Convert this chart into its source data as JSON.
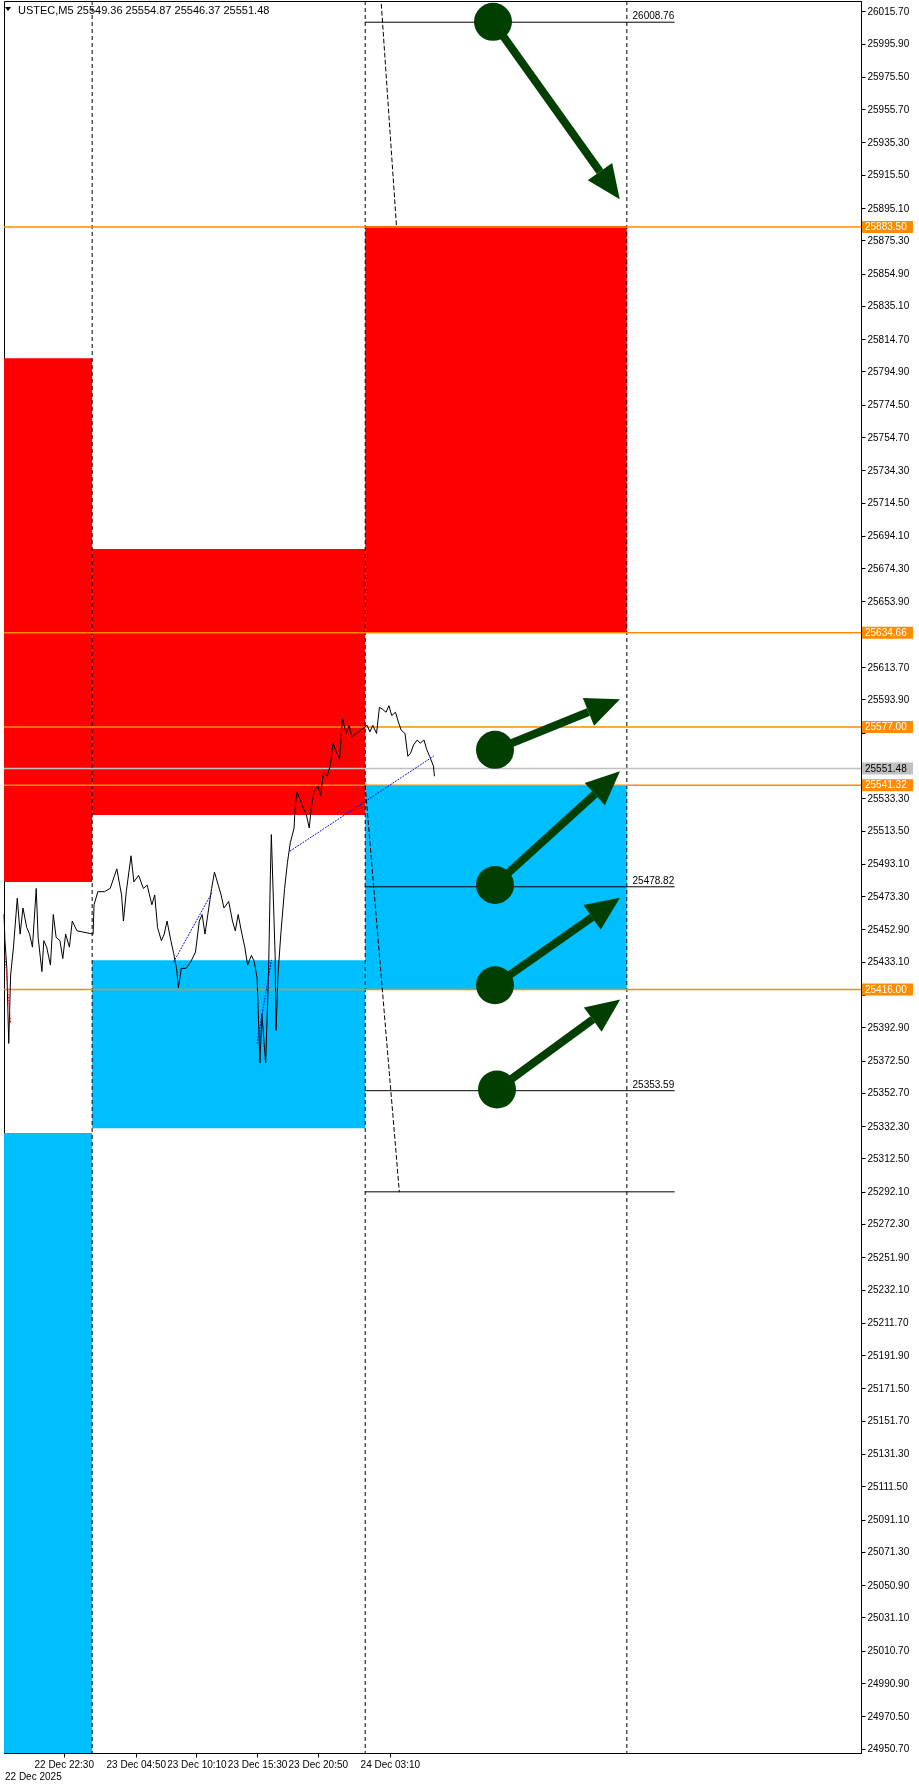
{
  "chart_data": {
    "type": "line",
    "title": "USTEC,M5 25549.36 25554.87 25546.37 25551.48",
    "annotations": [
      "22 Dec 2025"
    ],
    "xlim": [
      "2025-12-22T17:15",
      "2025-12-25T20:35"
    ],
    "xticks": [
      {
        "value": "2025-12-22T22:30",
        "label": "22 Dec 22:30"
      },
      {
        "value": "2025-12-23T04:50",
        "label": "23 Dec 04:50"
      },
      {
        "value": "2025-12-23T10:10",
        "label": "23 Dec 10:10"
      },
      {
        "value": "2025-12-23T15:30",
        "label": "23 Dec 15:30"
      },
      {
        "value": "2025-12-23T20:50",
        "label": "23 Dec 20:50"
      },
      {
        "value": "2025-12-24T03:10",
        "label": "24 Dec 03:10"
      }
    ],
    "ylim": [
      24948,
      26022
    ],
    "yticks": [
      {
        "value": 26015.7,
        "label": "26015.70"
      },
      {
        "value": 25995.9,
        "label": "25995.90"
      },
      {
        "value": 25975.5,
        "label": "25975.50"
      },
      {
        "value": 25955.7,
        "label": "25955.70"
      },
      {
        "value": 25935.3,
        "label": "25935.30"
      },
      {
        "value": 25915.5,
        "label": "25915.50"
      },
      {
        "value": 25895.1,
        "label": "25895.10"
      },
      {
        "value": 25875.3,
        "label": "25875.30"
      },
      {
        "value": 25854.9,
        "label": "25854.90"
      },
      {
        "value": 25835.1,
        "label": "25835.10"
      },
      {
        "value": 25814.7,
        "label": "25814.70"
      },
      {
        "value": 25794.9,
        "label": "25794.90"
      },
      {
        "value": 25774.5,
        "label": "25774.50"
      },
      {
        "value": 25754.7,
        "label": "25754.70"
      },
      {
        "value": 25734.3,
        "label": "25734.30"
      },
      {
        "value": 25714.5,
        "label": "25714.50"
      },
      {
        "value": 25694.1,
        "label": "25694.10"
      },
      {
        "value": 25674.3,
        "label": "25674.30"
      },
      {
        "value": 25653.9,
        "label": "25653.90"
      },
      {
        "value": 25613.7,
        "label": "25613.70"
      },
      {
        "value": 25593.9,
        "label": "25593.90"
      },
      {
        "value": 25573.5,
        "label": null
      },
      {
        "value": 25533.3,
        "label": "25533.30"
      },
      {
        "value": 25513.5,
        "label": "25513.50"
      },
      {
        "value": 25493.1,
        "label": "25493.10"
      },
      {
        "value": 25473.3,
        "label": "25473.30"
      },
      {
        "value": 25452.9,
        "label": "25452.90"
      },
      {
        "value": 25433.1,
        "label": "25433.10"
      },
      {
        "value": 25412.7,
        "label": null
      },
      {
        "value": 25392.9,
        "label": "25392.90"
      },
      {
        "value": 25372.5,
        "label": "25372.50"
      },
      {
        "value": 25352.7,
        "label": "25352.70"
      },
      {
        "value": 25332.3,
        "label": "25332.30"
      },
      {
        "value": 25312.5,
        "label": "25312.50"
      },
      {
        "value": 25292.1,
        "label": "25292.10"
      },
      {
        "value": 25272.3,
        "label": "25272.30"
      },
      {
        "value": 25251.9,
        "label": "25251.90"
      },
      {
        "value": 25232.1,
        "label": "25232.10"
      },
      {
        "value": 25211.7,
        "label": "25211.70"
      },
      {
        "value": 25191.9,
        "label": "25191.90"
      },
      {
        "value": 25171.5,
        "label": "25171.50"
      },
      {
        "value": 25151.7,
        "label": "25151.70"
      },
      {
        "value": 25131.3,
        "label": "25131.30"
      },
      {
        "value": 25111.5,
        "label": "25111.50"
      },
      {
        "value": 25091.1,
        "label": "25091.10"
      },
      {
        "value": 25071.3,
        "label": "25071.30"
      },
      {
        "value": 25050.9,
        "label": "25050.90"
      },
      {
        "value": 25031.1,
        "label": "25031.10"
      },
      {
        "value": 25010.7,
        "label": "25010.70"
      },
      {
        "value": 24990.9,
        "label": "24990.90"
      },
      {
        "value": 24970.5,
        "label": "24970.50"
      },
      {
        "value": 24950.7,
        "label": "24950.70"
      }
    ],
    "series": [
      {
        "type": "line",
        "color": "#ff0000",
        "x": [
          "2025-12-22T17:15",
          "2025-12-23T01:00"
        ],
        "values": [
          null,
          null
        ],
        "lower": [
          25482,
          25482
        ],
        "upper": [
          25803,
          25803
        ]
      },
      {
        "type": "line",
        "color": "#ff0000",
        "x": [
          "2025-12-23T01:00",
          "2025-12-24T01:00"
        ],
        "values": [
          null,
          null
        ],
        "lower": [
          25523,
          25523
        ],
        "upper": [
          25686,
          25686
        ]
      },
      {
        "type": "line",
        "color": "#ff0000",
        "x": [
          "2025-12-24T01:00",
          "2025-12-25T00:00"
        ],
        "values": [
          null,
          null
        ],
        "lower": [
          25635,
          25635
        ],
        "upper": [
          25884,
          25884
        ]
      },
      {
        "type": "line",
        "color": "#00bfff",
        "x": [
          "2025-12-22T17:15",
          "2025-12-23T01:00"
        ],
        "values": [
          null,
          null
        ],
        "lower": [
          24948,
          24948
        ],
        "upper": [
          25328,
          25328
        ]
      },
      {
        "type": "line",
        "color": "#00bfff",
        "x": [
          "2025-12-23T01:00",
          "2025-12-24T01:00"
        ],
        "values": [
          null,
          null
        ],
        "lower": [
          25331,
          25331
        ],
        "upper": [
          25434,
          25434
        ]
      },
      {
        "type": "line",
        "color": "#00bfff",
        "x": [
          "2025-12-24T01:00",
          "2025-12-25T00:00"
        ],
        "values": [
          null,
          null
        ],
        "lower": [
          25416,
          25416
        ],
        "upper": [
          25541,
          25541
        ]
      },
      {
        "type": "line",
        "color": "#000000",
        "x": [
          "2025-12-22T17:15",
          "2025-12-22T17:20",
          "2025-12-22T17:30",
          "2025-12-22T17:35",
          "2025-12-22T17:40",
          "2025-12-22T17:50",
          "2025-12-22T18:05",
          "2025-12-22T18:25",
          "2025-12-22T18:40",
          "2025-12-22T18:55",
          "2025-12-22T19:15",
          "2025-12-22T19:30",
          "2025-12-22T19:45",
          "2025-12-22T20:05",
          "2025-12-22T20:15",
          "2025-12-22T20:35",
          "2025-12-22T20:45",
          "2025-12-22T21:00",
          "2025-12-22T21:20",
          "2025-12-22T21:35",
          "2025-12-22T21:50",
          "2025-12-22T22:10",
          "2025-12-22T22:25",
          "2025-12-22T22:40",
          "2025-12-22T23:00",
          "2025-12-22T23:15",
          "2025-12-22T23:40",
          "2025-12-23T01:05",
          "2025-12-23T01:10",
          "2025-12-23T01:30",
          "2025-12-23T02:05",
          "2025-12-23T02:35",
          "2025-12-23T03:10",
          "2025-12-23T03:35",
          "2025-12-23T03:45",
          "2025-12-23T04:00",
          "2025-12-23T04:25",
          "2025-12-23T04:40",
          "2025-12-23T05:05",
          "2025-12-23T05:30",
          "2025-12-23T05:50",
          "2025-12-23T06:15",
          "2025-12-23T06:30",
          "2025-12-23T06:45",
          "2025-12-23T07:05",
          "2025-12-23T07:20",
          "2025-12-23T07:35",
          "2025-12-23T07:55",
          "2025-12-23T08:10",
          "2025-12-23T08:25",
          "2025-12-23T08:35",
          "2025-12-23T08:50",
          "2025-12-23T09:15",
          "2025-12-23T09:40",
          "2025-12-23T10:05",
          "2025-12-23T10:25",
          "2025-12-23T10:40",
          "2025-12-23T10:55",
          "2025-12-23T11:15",
          "2025-12-23T11:30",
          "2025-12-23T11:45",
          "2025-12-23T12:05",
          "2025-12-23T12:20",
          "2025-12-23T12:35",
          "2025-12-23T13:00",
          "2025-12-23T13:20",
          "2025-12-23T13:35",
          "2025-12-23T13:50",
          "2025-12-23T14:10",
          "2025-12-23T14:25",
          "2025-12-23T14:40",
          "2025-12-23T15:00",
          "2025-12-23T15:15",
          "2025-12-23T15:30",
          "2025-12-23T15:45",
          "2025-12-23T15:55",
          "2025-12-23T16:15",
          "2025-12-23T16:30",
          "2025-12-23T16:40",
          "2025-12-23T16:45",
          "2025-12-23T17:05",
          "2025-12-23T17:10",
          "2025-12-23T17:20",
          "2025-12-23T17:35",
          "2025-12-23T17:55",
          "2025-12-23T18:10",
          "2025-12-23T18:25",
          "2025-12-23T18:45",
          "2025-12-23T18:50",
          "2025-12-23T19:00",
          "2025-12-23T19:15",
          "2025-12-23T19:35",
          "2025-12-23T19:50",
          "2025-12-23T20:05",
          "2025-12-23T20:15",
          "2025-12-23T20:30",
          "2025-12-23T20:50",
          "2025-12-23T21:05",
          "2025-12-23T21:20",
          "2025-12-23T21:40",
          "2025-12-23T21:55",
          "2025-12-23T22:10",
          "2025-12-23T22:30",
          "2025-12-23T22:45",
          "2025-12-23T23:00",
          "2025-12-23T23:20",
          "2025-12-23T23:35",
          "2025-12-23T23:50",
          "2025-12-24T01:10",
          "2025-12-24T01:25",
          "2025-12-24T01:40",
          "2025-12-24T02:00",
          "2025-12-24T02:15",
          "2025-12-24T02:30",
          "2025-12-24T02:50",
          "2025-12-24T03:05",
          "2025-12-24T03:20",
          "2025-12-24T03:40",
          "2025-12-24T03:55",
          "2025-12-24T04:10",
          "2025-12-24T04:30",
          "2025-12-24T04:45",
          "2025-12-24T05:00",
          "2025-12-24T05:15",
          "2025-12-24T05:35",
          "2025-12-24T05:50",
          "2025-12-24T06:10",
          "2025-12-24T06:25",
          "2025-12-24T06:40",
          "2025-12-24T07:00",
          "2025-12-24T07:05"
        ],
        "values": [
          25462,
          25446,
          25429,
          25405,
          25383,
          25425,
          25442,
          25472,
          25450,
          25466,
          25454,
          25450,
          25442,
          25478,
          25448,
          25427,
          25446,
          25442,
          25431,
          25462,
          25448,
          25446,
          25435,
          25450,
          25442,
          25458,
          25452,
          25450,
          25468,
          25476,
          25476,
          25478,
          25490,
          25474,
          25458,
          25476,
          25498,
          25482,
          25486,
          25478,
          25480,
          25468,
          25474,
          25454,
          25446,
          25450,
          25458,
          25446,
          25438,
          25429,
          25417,
          25429,
          25429,
          25433,
          25439,
          25458,
          25462,
          25450,
          25466,
          25478,
          25488,
          25480,
          25474,
          25466,
          25470,
          25458,
          25452,
          25462,
          25450,
          25442,
          25431,
          25437,
          25433,
          25423,
          25371,
          25401,
          25371,
          25425,
          25486,
          25511,
          25437,
          25391,
          25425,
          25450,
          25478,
          25494,
          25506,
          25515,
          25527,
          25537,
          25533,
          25527,
          25523,
          25515,
          25527,
          25537,
          25541,
          25535,
          25549,
          25547,
          25553,
          25567,
          25561,
          25557,
          25582,
          25573,
          25578,
          25571,
          25578,
          25574,
          25578,
          25573,
          25589,
          25588,
          25586,
          25590,
          25584,
          25586,
          25580,
          25575,
          25573,
          25559,
          25561,
          25566,
          25569,
          25567,
          25569,
          25563,
          25559,
          25553,
          25547
        ]
      },
      {
        "type": "line",
        "color": "#000000",
        "name": "26008.76",
        "x": [
          "2025-12-24T01:00",
          "2025-12-25T04:10"
        ],
        "values": [
          26009,
          26009
        ]
      },
      {
        "type": "line",
        "color": "#000000",
        "name": "25478.82",
        "x": [
          "2025-12-24T01:00",
          "2025-12-25T04:10"
        ],
        "values": [
          25479,
          25479
        ]
      },
      {
        "type": "line",
        "color": "#000000",
        "name": "25353.59",
        "x": [
          "2025-12-24T01:00",
          "2025-12-25T04:10"
        ],
        "values": [
          25354,
          25354
        ]
      },
      {
        "type": "line",
        "color": "#000000",
        "x": [
          "2025-12-24T01:00",
          "2025-12-25T04:10"
        ],
        "values": [
          25292,
          25292
        ]
      },
      {
        "type": "line",
        "color": "#000000",
        "line_style": "dashed",
        "x": [
          "2025-12-24T02:25",
          "2025-12-24T03:45"
        ],
        "values": [
          26020,
          25884
        ]
      },
      {
        "type": "line",
        "color": "#000000",
        "line_style": "dashed",
        "x": [
          "2025-12-24T01:00",
          "2025-12-24T04:00"
        ],
        "values": [
          25541,
          25292
        ]
      },
      {
        "type": "line",
        "color": "#0000ff",
        "line_style": "dotted",
        "x": [
          "2025-12-23T08:10",
          "2025-12-23T11:30"
        ],
        "values": [
          25433,
          25475
        ]
      },
      {
        "type": "line",
        "color": "#0000ff",
        "line_style": "dotted",
        "x": [
          "2025-12-23T15:30",
          "2025-12-23T16:45"
        ],
        "values": [
          25383,
          25434
        ]
      },
      {
        "type": "line",
        "color": "#0000ff",
        "line_style": "dotted",
        "x": [
          "2025-12-23T18:25",
          "2025-12-24T07:00"
        ],
        "values": [
          25501,
          25559
        ]
      },
      {
        "type": "line",
        "color": "#ff0000",
        "line_style": "dotted",
        "x": [
          "2025-12-22T17:20",
          "2025-12-22T17:50"
        ],
        "values": [
          25437,
          25395
        ]
      }
    ],
    "ref_lines": [
      {
        "axis": "x",
        "value": "2025-12-23T01:00",
        "color": "#000000",
        "line_style": "dashed"
      },
      {
        "axis": "x",
        "value": "2025-12-24T01:00",
        "color": "#000000",
        "line_style": "dashed"
      },
      {
        "axis": "x",
        "value": "2025-12-25T00:00",
        "color": "#000000",
        "line_style": "dashed"
      },
      {
        "axis": "y",
        "value": 25883.5,
        "label": "25883.50",
        "color": "#ff8c00"
      },
      {
        "axis": "y",
        "value": 25634.66,
        "label": "25634.66",
        "color": "#ff8c00"
      },
      {
        "axis": "y",
        "value": 25577,
        "label": "25577.00",
        "color": "#ff8c00"
      },
      {
        "axis": "y",
        "value": 25551.48,
        "label": "25551.48",
        "color": "#c0c0c0"
      },
      {
        "axis": "y",
        "value": 25541.32,
        "label": "25541.32",
        "color": "#ff8c00"
      },
      {
        "axis": "y",
        "value": 25416,
        "label": "25416.00",
        "color": "#ff8c00"
      }
    ]
  }
}
